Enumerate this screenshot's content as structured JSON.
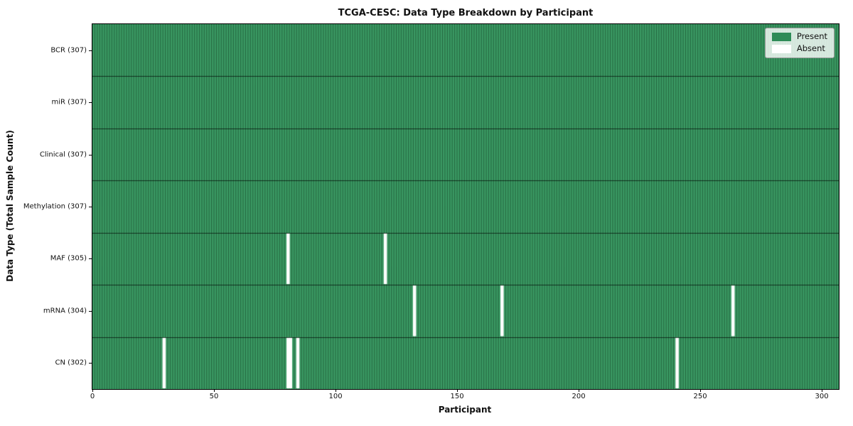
{
  "figure": {
    "title": "TCGA-CESC: Data Type Breakdown by Participant",
    "xlabel": "Participant",
    "ylabel": "Data Type (Total Sample Count)"
  },
  "legend": {
    "items": [
      {
        "label": "Present",
        "color": "#2e8b57"
      },
      {
        "label": "Absent",
        "color": "#ffffff"
      }
    ]
  },
  "chart_data": {
    "type": "heatmap",
    "title": "TCGA-CESC: Data Type Breakdown by Participant",
    "xlabel": "Participant",
    "ylabel": "Data Type (Total Sample Count)",
    "n_participants": 307,
    "xlim": [
      0,
      307
    ],
    "x_ticks": [
      "0",
      "50",
      "100",
      "150",
      "200",
      "250",
      "300"
    ],
    "x_tick_values": [
      0,
      50,
      100,
      150,
      200,
      250,
      300
    ],
    "grid": false,
    "legend_position": "upper right",
    "legend_entries": [
      "Present",
      "Absent"
    ],
    "rows": [
      {
        "label": "BCR (307)",
        "name": "BCR",
        "total_samples": 307,
        "absent_participants": []
      },
      {
        "label": "miR (307)",
        "name": "miR",
        "total_samples": 307,
        "absent_participants": []
      },
      {
        "label": "Clinical (307)",
        "name": "Clinical",
        "total_samples": 307,
        "absent_participants": []
      },
      {
        "label": "Methylation (307)",
        "name": "Methylation",
        "total_samples": 307,
        "absent_participants": []
      },
      {
        "label": "MAF (305)",
        "name": "MAF",
        "total_samples": 305,
        "absent_participants": [
          80,
          120
        ]
      },
      {
        "label": "mRNA (304)",
        "name": "mRNA",
        "total_samples": 304,
        "absent_participants": [
          132,
          168,
          263
        ]
      },
      {
        "label": "CN (302)",
        "name": "CN",
        "total_samples": 302,
        "absent_participants": [
          29,
          80,
          81,
          84,
          240
        ]
      }
    ],
    "colors": {
      "present": "#2e8b57",
      "cell_fill": "#3b9a64",
      "cell_edge": "#1a512f",
      "absent": "#ffffff",
      "frame": "#000000"
    }
  }
}
